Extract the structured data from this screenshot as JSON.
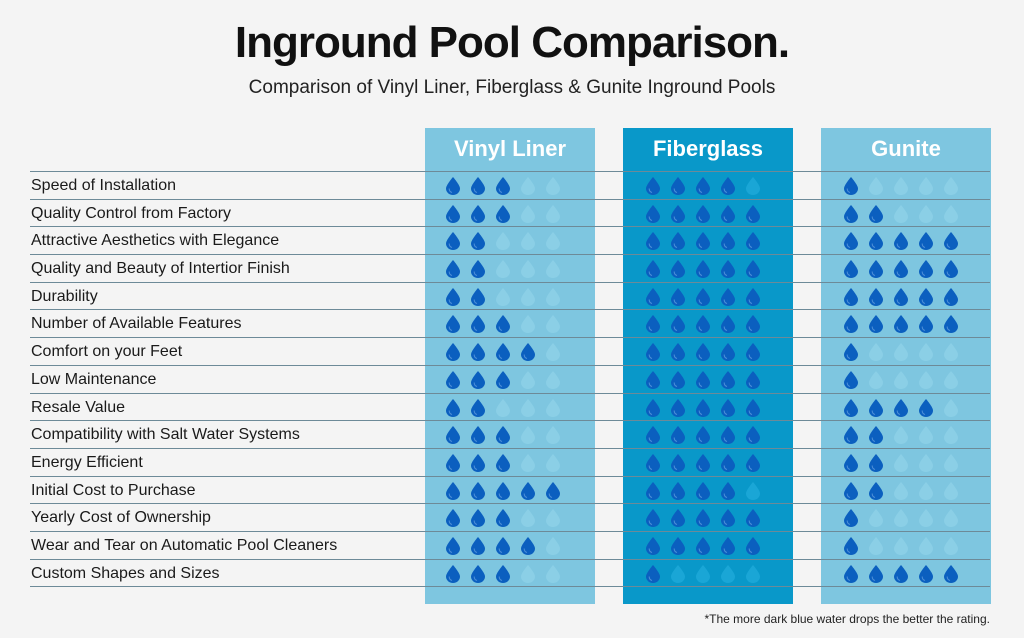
{
  "title": "Inground Pool Comparison.",
  "subtitle": "Comparison of Vinyl Liner, Fiberglass & Gunite Inground Pools",
  "footnote": "*The more dark blue water drops the better the rating.",
  "colors": {
    "light_column": "#7ec6e0",
    "dark_column": "#0998c9",
    "drop_filled": "#0b5fbf"
  },
  "chart_data": {
    "type": "table",
    "scale_max": 5,
    "columns": [
      "Vinyl Liner",
      "Fiberglass",
      "Gunite"
    ],
    "rows": [
      "Speed of Installation",
      "Quality Control from Factory",
      "Attractive Aesthetics with Elegance",
      "Quality and Beauty of Intertior Finish",
      "Durability",
      "Number of Available Features",
      "Comfort on your Feet",
      "Low Maintenance",
      "Resale Value",
      "Compatibility with Salt Water Systems",
      "Energy Efficient",
      "Initial Cost to Purchase",
      "Yearly Cost of Ownership",
      "Wear and Tear on Automatic Pool Cleaners",
      "Custom Shapes and Sizes"
    ],
    "series": [
      {
        "name": "Vinyl Liner",
        "values": [
          3,
          3,
          2,
          2,
          2,
          3,
          4,
          3,
          2,
          3,
          3,
          5,
          3,
          4,
          3
        ]
      },
      {
        "name": "Fiberglass",
        "values": [
          4,
          5,
          5,
          5,
          5,
          5,
          5,
          5,
          5,
          5,
          5,
          4,
          5,
          5,
          1
        ]
      },
      {
        "name": "Gunite",
        "values": [
          1,
          2,
          5,
          5,
          5,
          5,
          1,
          1,
          4,
          2,
          2,
          2,
          1,
          1,
          5
        ]
      }
    ]
  }
}
